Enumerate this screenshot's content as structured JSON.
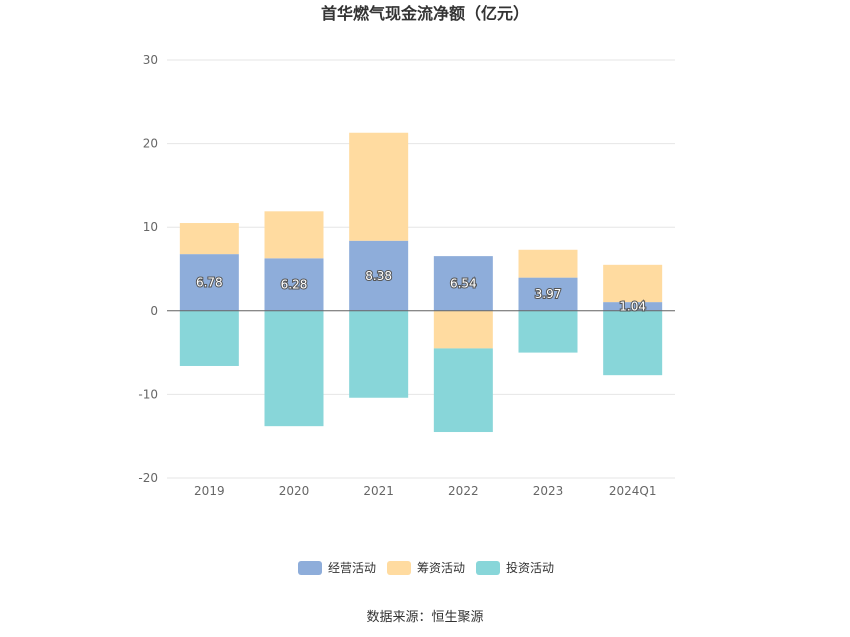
{
  "chart_data": {
    "type": "bar",
    "stacked": true,
    "title": "首华燃气现金流净额（亿元）",
    "categories": [
      "2019",
      "2020",
      "2021",
      "2022",
      "2023",
      "2024Q1"
    ],
    "ylim": [
      -20,
      30
    ],
    "yticks": [
      "30",
      "20",
      "10",
      "0",
      "-10",
      "-20"
    ],
    "grid": true,
    "legend_position": "bottom",
    "series": [
      {
        "name": "经营活动",
        "color": "#8eadda",
        "values": [
          6.78,
          6.28,
          8.38,
          6.54,
          3.97,
          1.04
        ],
        "labels": [
          "6.78",
          "6.28",
          "8.38",
          "6.54",
          "3.97",
          "1.04"
        ]
      },
      {
        "name": "筹资活动",
        "color": "#ffdba0",
        "values": [
          3.72,
          5.62,
          12.92,
          -4.5,
          3.33,
          4.46
        ]
      },
      {
        "name": "投资活动",
        "color": "#88d6d9",
        "values": [
          -6.6,
          -13.8,
          -10.4,
          -10.0,
          -5.0,
          -7.7
        ]
      }
    ],
    "source": "数据来源：恒生聚源"
  }
}
